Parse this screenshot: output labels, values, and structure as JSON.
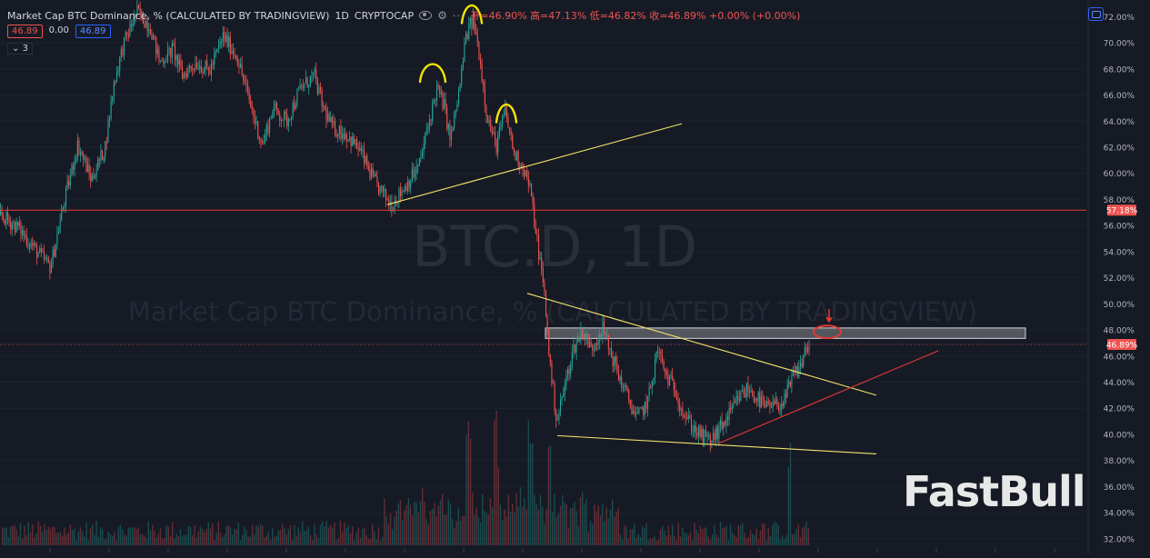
{
  "legend": {
    "title": "Market Cap BTC Dominance, % (CALCULATED BY TRADINGVIEW)",
    "interval": "1D",
    "exchange": "CRYPTOCAP",
    "ohlc": "开=46.90% 高=47.13% 低=46.82% 收=46.89% +0.00% (+0.00%)",
    "chip_price_left": "46.89",
    "chip_change": "0.00",
    "chip_price_right": "46.89",
    "indicator_count": "3"
  },
  "watermark": {
    "symbol": "BTC.D, 1D",
    "name": "Market Cap BTC Dominance, % (CALCULATED BY TRADINGVIEW)"
  },
  "brand": "FastBull",
  "colors": {
    "background": "#161a25",
    "up": "#26a69a",
    "down": "#ef5350",
    "trendline": "#f0e36a",
    "support": "#e53935"
  },
  "chart_data": {
    "type": "candlestick",
    "y_axis": {
      "unit": "%",
      "range": [
        31.5,
        73.0
      ],
      "ticks": [
        "72.00%",
        "70.00%",
        "68.00%",
        "66.00%",
        "64.00%",
        "62.00%",
        "60.00%",
        "58.00%",
        "56.00%",
        "54.00%",
        "52.00%",
        "50.00%",
        "48.00%",
        "46.00%",
        "44.00%",
        "42.00%",
        "40.00%",
        "38.00%",
        "36.00%",
        "34.00%",
        "32.00%"
      ],
      "tick_values": [
        72,
        70,
        68,
        66,
        64,
        62,
        60,
        58,
        56,
        54,
        52,
        50,
        48,
        46,
        44,
        42,
        40,
        38,
        36,
        34,
        32
      ]
    },
    "x_axis": {
      "range": [
        0,
        1195
      ]
    },
    "price_labels": [
      {
        "value": 57.18,
        "text": "57.18%",
        "color": "#ef5350"
      },
      {
        "value": 46.89,
        "text": "46.89%",
        "color": "#ef5350"
      }
    ],
    "horizontal_line": {
      "value": 57.18,
      "color": "#e53935"
    },
    "current_price_line": {
      "value": 46.89,
      "color": "#ef5350"
    },
    "price_path": [
      [
        0,
        56.8
      ],
      [
        20,
        55.8
      ],
      [
        40,
        54.0
      ],
      [
        55,
        52.8
      ],
      [
        70,
        57.8
      ],
      [
        85,
        62.2
      ],
      [
        100,
        59.5
      ],
      [
        115,
        62.0
      ],
      [
        125,
        67.0
      ],
      [
        135,
        69.8
      ],
      [
        150,
        72.4
      ],
      [
        165,
        71.2
      ],
      [
        175,
        68.5
      ],
      [
        190,
        69.5
      ],
      [
        200,
        67.5
      ],
      [
        215,
        68.5
      ],
      [
        230,
        67.8
      ],
      [
        245,
        70.5
      ],
      [
        260,
        69.0
      ],
      [
        270,
        66.5
      ],
      [
        280,
        64.0
      ],
      [
        288,
        62.2
      ],
      [
        300,
        65.0
      ],
      [
        315,
        64.0
      ],
      [
        330,
        66.5
      ],
      [
        345,
        67.5
      ],
      [
        355,
        65.0
      ],
      [
        365,
        63.5
      ],
      [
        380,
        63.0
      ],
      [
        395,
        61.8
      ],
      [
        410,
        59.5
      ],
      [
        420,
        58.5
      ],
      [
        430,
        57.6
      ],
      [
        445,
        59.0
      ],
      [
        460,
        60.5
      ],
      [
        470,
        63.5
      ],
      [
        480,
        66.5
      ],
      [
        488,
        65.2
      ],
      [
        495,
        62.5
      ],
      [
        505,
        66.5
      ],
      [
        512,
        70.5
      ],
      [
        520,
        71.8
      ],
      [
        527,
        69.0
      ],
      [
        535,
        64.5
      ],
      [
        545,
        62.0
      ],
      [
        555,
        64.8
      ],
      [
        565,
        61.5
      ],
      [
        575,
        60.5
      ],
      [
        582,
        59.0
      ],
      [
        590,
        55.0
      ],
      [
        598,
        51.0
      ],
      [
        605,
        45.0
      ],
      [
        612,
        41.0
      ],
      [
        620,
        43.5
      ],
      [
        630,
        46.5
      ],
      [
        640,
        48.0
      ],
      [
        650,
        46.5
      ],
      [
        662,
        48.2
      ],
      [
        670,
        46.5
      ],
      [
        680,
        44.5
      ],
      [
        690,
        42.8
      ],
      [
        700,
        41.2
      ],
      [
        712,
        42.5
      ],
      [
        723,
        46.5
      ],
      [
        732,
        44.5
      ],
      [
        742,
        43.5
      ],
      [
        752,
        41.5
      ],
      [
        762,
        40.5
      ],
      [
        772,
        39.8
      ],
      [
        782,
        39.5
      ],
      [
        792,
        40.5
      ],
      [
        802,
        41.5
      ],
      [
        812,
        42.8
      ],
      [
        822,
        43.5
      ],
      [
        832,
        42.8
      ],
      [
        842,
        42.0
      ],
      [
        852,
        42.2
      ],
      [
        862,
        42.5
      ],
      [
        872,
        44.5
      ],
      [
        880,
        45.2
      ],
      [
        885,
        46.5
      ],
      [
        890,
        46.89
      ]
    ],
    "volume": {
      "peak_positions": [
        514,
        545,
        583,
        604,
        868
      ],
      "baseline_value": 31.5
    },
    "annotations": {
      "trendlines": [
        {
          "name": "rising-support-upper",
          "points": [
            [
              426,
              57.6
            ],
            [
              750,
              63.8
            ]
          ],
          "color": "#f0e36a"
        },
        {
          "name": "falling-wedge-upper",
          "points": [
            [
              580,
              50.8
            ],
            [
              964,
              43.0
            ]
          ],
          "color": "#f0e36a"
        },
        {
          "name": "falling-wedge-lower",
          "points": [
            [
              613,
              39.9
            ],
            [
              964,
              38.5
            ]
          ],
          "color": "#f0e36a"
        },
        {
          "name": "rising-support-red",
          "points": [
            [
              790,
              39.3
            ],
            [
              1032,
              46.4
            ]
          ],
          "color": "#e53935"
        }
      ],
      "resistance_zone": {
        "x": [
          600,
          1128
        ],
        "y": [
          47.35,
          48.15
        ]
      },
      "target_ellipse": {
        "x_center": 910,
        "y_center": 47.85,
        "color": "#e53935"
      },
      "arrow": {
        "x": 912,
        "y_from": 49.6,
        "y_to": 48.6,
        "color": "#e53935"
      },
      "head_shoulders_arcs": [
        {
          "name": "left-shoulder",
          "x_range": [
            462,
            490
          ],
          "y_peak": 68.4
        },
        {
          "name": "head",
          "x_range": [
            508,
            530
          ],
          "y_peak": 72.9
        },
        {
          "name": "right-shoulder",
          "x_range": [
            546,
            568
          ],
          "y_peak": 65.3
        }
      ]
    }
  }
}
